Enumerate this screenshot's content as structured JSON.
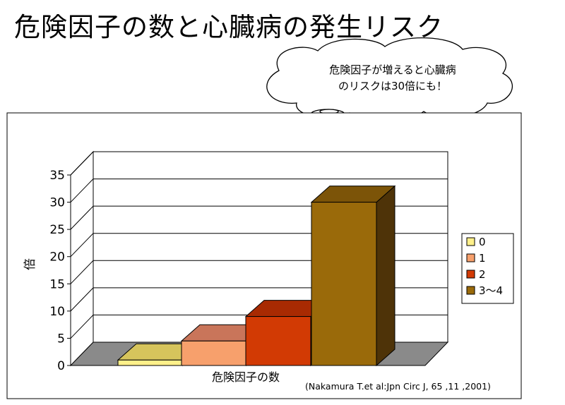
{
  "title": "危険因子の数と心臓病の発生リスク",
  "callout": {
    "line1": "危険因子が増えると心臓病",
    "line2": "のリスクは30倍にも！"
  },
  "citation": "(Nakamura T.et al:Jpn Circ J, 65 ,11 ,2001)",
  "chart_data": {
    "type": "bar",
    "categories": [
      "0",
      "1",
      "2",
      "3〜4"
    ],
    "values": [
      1,
      4.5,
      9,
      30
    ],
    "xlabel": "危険因子の数",
    "ylabel": "倍",
    "ylim": [
      0,
      35
    ],
    "yticks": [
      0,
      5,
      10,
      15,
      20,
      25,
      30,
      35
    ],
    "legend": [
      "0",
      "1",
      "2",
      "3〜4"
    ],
    "legend_position": "right",
    "grid": true,
    "colors": {
      "front": [
        "#fff08a",
        "#f7a06c",
        "#d23a04",
        "#9a6a0a"
      ],
      "top": [
        "#d6c45c",
        "#c9755a",
        "#a82a02",
        "#7c5408"
      ],
      "side": [
        "#c7b652",
        "#c46a4a",
        "#8e2402",
        "#4e3308"
      ],
      "legend": [
        "#fff08a",
        "#f7a06c",
        "#d23a04",
        "#9a6a0a"
      ]
    }
  }
}
